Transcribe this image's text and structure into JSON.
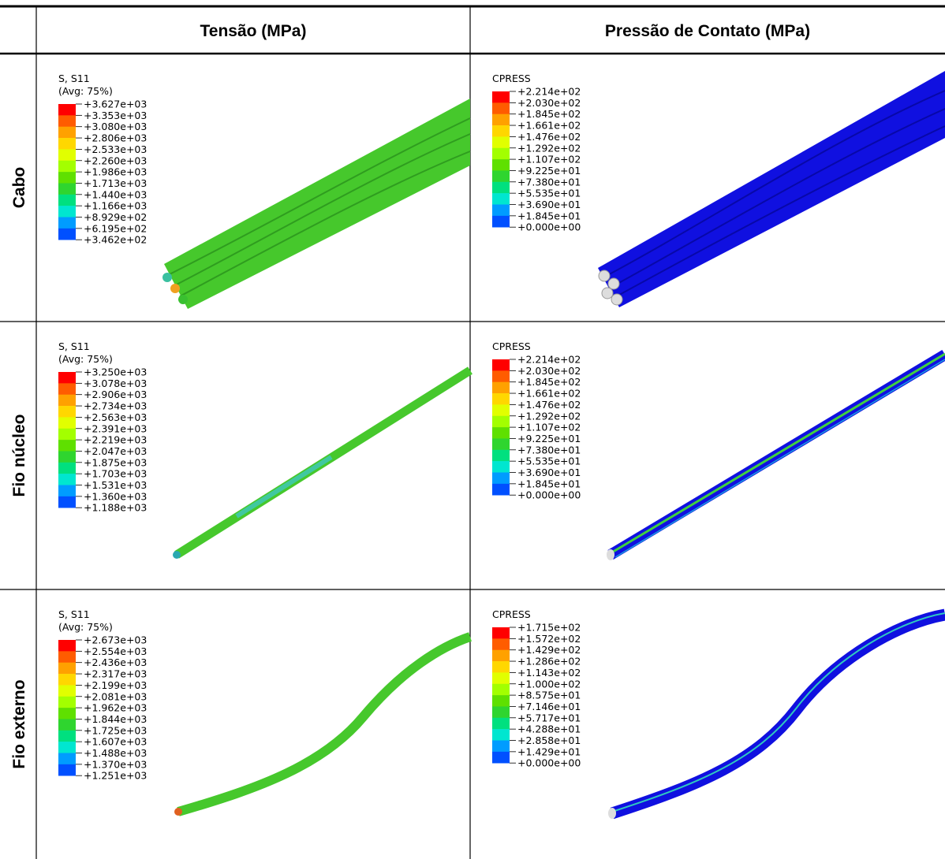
{
  "header": {
    "columns": [
      "Tensão (MPa)",
      "Pressão de Contato (MPa)"
    ]
  },
  "rows": [
    {
      "label": "Cabo",
      "cells": [
        {
          "title": [
            "S, S11",
            "(Avg: 75%)"
          ],
          "labels": [
            "+3.627e+03",
            "+3.353e+03",
            "+3.080e+03",
            "+2.806e+03",
            "+2.533e+03",
            "+2.260e+03",
            "+1.986e+03",
            "+1.713e+03",
            "+1.440e+03",
            "+1.166e+03",
            "+8.929e+02",
            "+6.195e+02",
            "+3.462e+02"
          ]
        },
        {
          "title": [
            "CPRESS"
          ],
          "labels": [
            "+2.214e+02",
            "+2.030e+02",
            "+1.845e+02",
            "+1.661e+02",
            "+1.476e+02",
            "+1.292e+02",
            "+1.107e+02",
            "+9.225e+01",
            "+7.380e+01",
            "+5.535e+01",
            "+3.690e+01",
            "+1.845e+01",
            "+0.000e+00"
          ]
        }
      ]
    },
    {
      "label": "Fio núcleo",
      "cells": [
        {
          "title": [
            "S, S11",
            "(Avg: 75%)"
          ],
          "labels": [
            "+3.250e+03",
            "+3.078e+03",
            "+2.906e+03",
            "+2.734e+03",
            "+2.563e+03",
            "+2.391e+03",
            "+2.219e+03",
            "+2.047e+03",
            "+1.875e+03",
            "+1.703e+03",
            "+1.531e+03",
            "+1.360e+03",
            "+1.188e+03"
          ]
        },
        {
          "title": [
            "CPRESS"
          ],
          "labels": [
            "+2.214e+02",
            "+2.030e+02",
            "+1.845e+02",
            "+1.661e+02",
            "+1.476e+02",
            "+1.292e+02",
            "+1.107e+02",
            "+9.225e+01",
            "+7.380e+01",
            "+5.535e+01",
            "+3.690e+01",
            "+1.845e+01",
            "+0.000e+00"
          ]
        }
      ]
    },
    {
      "label": "Fio externo",
      "cells": [
        {
          "title": [
            "S, S11",
            "(Avg: 75%)"
          ],
          "labels": [
            "+2.673e+03",
            "+2.554e+03",
            "+2.436e+03",
            "+2.317e+03",
            "+2.199e+03",
            "+2.081e+03",
            "+1.962e+03",
            "+1.844e+03",
            "+1.725e+03",
            "+1.607e+03",
            "+1.488e+03",
            "+1.370e+03",
            "+1.251e+03"
          ]
        },
        {
          "title": [
            "CPRESS"
          ],
          "labels": [
            "+1.715e+02",
            "+1.572e+02",
            "+1.429e+02",
            "+1.286e+02",
            "+1.143e+02",
            "+1.000e+02",
            "+8.575e+01",
            "+7.146e+01",
            "+5.717e+01",
            "+4.288e+01",
            "+2.858e+01",
            "+1.429e+01",
            "+0.000e+00"
          ]
        }
      ]
    }
  ]
}
